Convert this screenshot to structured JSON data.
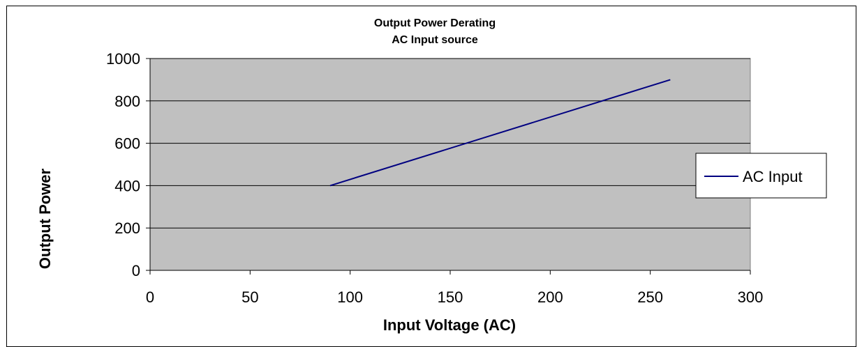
{
  "chart_data": {
    "type": "line",
    "title": "Output Power Derating",
    "subtitle": "AC Input source",
    "xlabel": "Input Voltage (AC)",
    "ylabel": "Output Power",
    "xlim": [
      0,
      300
    ],
    "ylim": [
      0,
      1000
    ],
    "x_ticks": [
      0,
      50,
      100,
      150,
      200,
      250,
      300
    ],
    "y_ticks": [
      0,
      200,
      400,
      600,
      800,
      1000
    ],
    "grid": "horizontal",
    "plot_background": "#c0c0c0",
    "legend_position": "right",
    "series": [
      {
        "name": "AC Input",
        "color": "#000080",
        "x": [
          90,
          260
        ],
        "y": [
          400,
          900
        ]
      }
    ]
  }
}
